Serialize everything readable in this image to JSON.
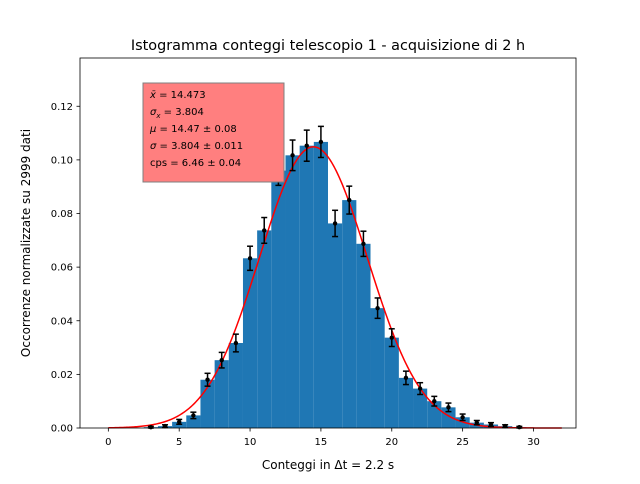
{
  "colors": {
    "bars": "#1f77b4",
    "fit_curve": "#ff0000",
    "error_points": "#000000",
    "stats_box_fill": "#ff7f7f",
    "stats_box_edge": "#7f7f7f"
  },
  "chart_data": {
    "type": "bar",
    "title": "Istogramma conteggi telescopio 1 - acquisizione di 2 h",
    "xlabel": "Conteggi in Δt = 2.2 s",
    "ylabel": "Occorrenze normalizzate su 2999 dati",
    "xlim": [
      -2,
      33
    ],
    "ylim": [
      0,
      0.138
    ],
    "xticks": [
      0,
      5,
      10,
      15,
      20,
      25,
      30
    ],
    "yticks": [
      0.0,
      0.02,
      0.04,
      0.06,
      0.08,
      0.1,
      0.12
    ],
    "ytick_labels": [
      "0.00",
      "0.02",
      "0.04",
      "0.06",
      "0.08",
      "0.10",
      "0.12"
    ],
    "grid": false,
    "categories": [
      3,
      4,
      5,
      6,
      7,
      8,
      9,
      10,
      11,
      12,
      13,
      14,
      15,
      16,
      17,
      18,
      19,
      20,
      21,
      22,
      23,
      24,
      25,
      26,
      27,
      28,
      29
    ],
    "values": [
      0.0003,
      0.0007,
      0.0023,
      0.0047,
      0.018,
      0.0253,
      0.0317,
      0.0633,
      0.0737,
      0.096,
      0.1017,
      0.1053,
      0.1067,
      0.0763,
      0.085,
      0.0687,
      0.0447,
      0.0337,
      0.0187,
      0.0147,
      0.01,
      0.0077,
      0.004,
      0.002,
      0.0013,
      0.0007,
      0.0003
    ],
    "errors": [
      0.0003,
      0.0005,
      0.0009,
      0.0012,
      0.0024,
      0.0029,
      0.0033,
      0.0045,
      0.0048,
      0.0055,
      0.0057,
      0.0058,
      0.0058,
      0.0049,
      0.0052,
      0.0047,
      0.0038,
      0.0033,
      0.0025,
      0.0022,
      0.0018,
      0.0016,
      0.0012,
      0.0008,
      0.0007,
      0.0005,
      0.0003
    ],
    "fit": {
      "model": "gaussian",
      "mu": 14.47,
      "sigma": 3.804,
      "x_range": [
        0,
        32
      ]
    },
    "stats_box": [
      {
        "symbol": "x̄",
        "text": " = 14.473"
      },
      {
        "symbol": "σ",
        "sub": "x",
        "text": " = 3.804"
      },
      {
        "symbol": "μ",
        "text": " = 14.47 ± 0.08"
      },
      {
        "symbol": "σ",
        "text": " = 3.804 ± 0.011"
      },
      {
        "symbol": "",
        "text": "cps = 6.46 ± 0.04"
      }
    ]
  }
}
